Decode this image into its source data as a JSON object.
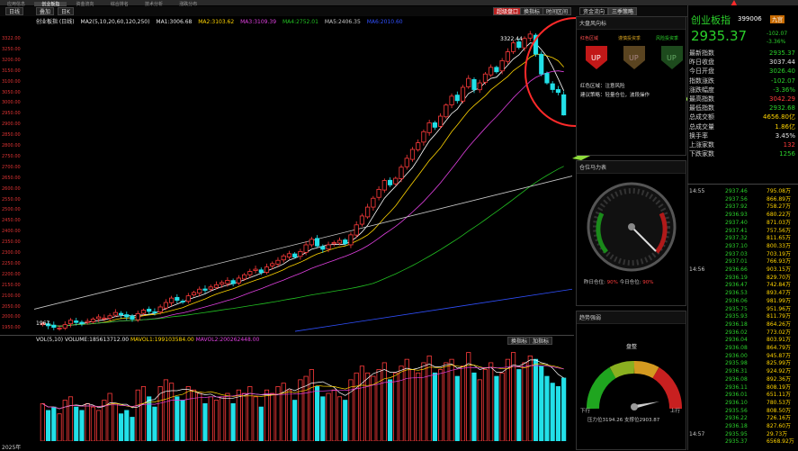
{
  "nav": {
    "tabs": [
      "应用信息",
      "创业板指",
      "资金流向",
      "综合排名",
      "技术分析",
      "涨跌分布"
    ]
  },
  "toolbar": {
    "period": "日线",
    "add_label": "叠加",
    "period2": "日K",
    "btn_restore": "复权",
    "btn_settings": "设置",
    "btn_pick": "选股",
    "btn_monitor": "监控",
    "right_a": "超级盘口",
    "right_b": "换指标",
    "right_c": "时间区间",
    "fund_flow": "资金流向",
    "season": "三季策略"
  },
  "stock": {
    "name": "创业板指",
    "code": "399006",
    "price": "2935.37",
    "change": "-102.07",
    "pct": "-3.36%",
    "tag": "九宫"
  },
  "ma": {
    "title": "创业板指 (日线)",
    "params": "MA2(5,10,20,60,120,250)",
    "ma1": "MA1:3006.68",
    "ma2": "MA2:3103.62",
    "ma3": "MA3:3109.39",
    "ma4": "MA4:2752.01",
    "ma5": "MA5:2406.35",
    "ma6": "MA6:2010.60"
  },
  "vol": {
    "label": "VOL(5,10)",
    "volume": "VOLUME:185613712.00",
    "mavol1": "MAVOL1:199103584.00",
    "mavol2": "MAVOL2:200262448.00",
    "switch": "换指标",
    "add": "加指标"
  },
  "annot": {
    "high": "3322.44",
    "low": "1967"
  },
  "yaxis": [
    "3322.00",
    "3250.00",
    "3200.00",
    "3150.00",
    "3100.00",
    "3050.00",
    "3000.00",
    "2950.00",
    "2900.00",
    "2850.00",
    "2800.00",
    "2750.00",
    "2700.00",
    "2650.00",
    "2600.00",
    "2550.00",
    "2500.00",
    "2450.00",
    "2400.00",
    "2350.00",
    "2300.00",
    "2250.00",
    "2200.00",
    "2150.00",
    "2100.00",
    "2050.00",
    "2000.00",
    "1950.00"
  ],
  "bottom": {
    "year": "2025年"
  },
  "compass": {
    "title": "大盘风向标",
    "labels": [
      "红色区域",
      "谨慎投资季",
      "风险投资季"
    ],
    "line1": "红色区域：注意风险",
    "line2": "建议策略：轻量仓位，波段操作"
  },
  "position": {
    "title": "仓位马力表",
    "yesterday_label": "昨日仓位:",
    "yesterday": "90%",
    "today_label": "今日仓位:",
    "today": "90%"
  },
  "trend": {
    "title": "趋势强弱",
    "state": "盘整",
    "down": "下行",
    "up": "上行",
    "pressure": "压力位3194.26",
    "support": "支撑位2903.87"
  },
  "quote": [
    {
      "k": "最新指数",
      "v": "2935.37",
      "c": "green"
    },
    {
      "k": "昨日收盘",
      "v": "3037.44",
      "c": "white"
    },
    {
      "k": "今日开盘",
      "v": "3026.40",
      "c": "green"
    },
    {
      "k": "指数涨跌",
      "v": "-102.07",
      "c": "green"
    },
    {
      "k": "涨跌幅度",
      "v": "-3.36%",
      "c": "green"
    },
    {
      "k": "最高指数",
      "v": "3042.29",
      "c": "red"
    },
    {
      "k": "最低指数",
      "v": "2932.68",
      "c": "green"
    },
    {
      "k": "总成交额",
      "v": "4656.80亿",
      "c": "yellow"
    },
    {
      "k": "总成交量",
      "v": "1.86亿",
      "c": "yellow"
    },
    {
      "k": "换手率",
      "v": "3.45%",
      "c": "white"
    },
    {
      "k": "上涨家数",
      "v": "132",
      "c": "red"
    },
    {
      "k": "下跌家数",
      "v": "1256",
      "c": "green"
    }
  ],
  "ticks": [
    {
      "t": "14:55",
      "p": "2937.46",
      "v": "795.08万"
    },
    {
      "t": "",
      "p": "2937.56",
      "v": "866.89万"
    },
    {
      "t": "",
      "p": "2937.92",
      "v": "758.27万"
    },
    {
      "t": "",
      "p": "2936.93",
      "v": "680.22万"
    },
    {
      "t": "",
      "p": "2937.40",
      "v": "871.03万"
    },
    {
      "t": "",
      "p": "2937.41",
      "v": "757.56万"
    },
    {
      "t": "",
      "p": "2937.32",
      "v": "811.65万"
    },
    {
      "t": "",
      "p": "2937.10",
      "v": "800.33万"
    },
    {
      "t": "",
      "p": "2937.03",
      "v": "703.19万"
    },
    {
      "t": "",
      "p": "2937.01",
      "v": "766.93万"
    },
    {
      "t": "14:56",
      "p": "2936.66",
      "v": "903.15万"
    },
    {
      "t": "",
      "p": "2936.19",
      "v": "829.70万"
    },
    {
      "t": "",
      "p": "2936.47",
      "v": "742.84万"
    },
    {
      "t": "",
      "p": "2936.53",
      "v": "893.47万"
    },
    {
      "t": "",
      "p": "2936.06",
      "v": "981.99万"
    },
    {
      "t": "",
      "p": "2935.75",
      "v": "951.96万"
    },
    {
      "t": "",
      "p": "2935.93",
      "v": "811.79万"
    },
    {
      "t": "",
      "p": "2936.18",
      "v": "864.26万"
    },
    {
      "t": "",
      "p": "2936.02",
      "v": "773.02万"
    },
    {
      "t": "",
      "p": "2936.04",
      "v": "803.91万"
    },
    {
      "t": "",
      "p": "2936.08",
      "v": "864.79万"
    },
    {
      "t": "",
      "p": "2936.00",
      "v": "945.87万"
    },
    {
      "t": "",
      "p": "2935.98",
      "v": "825.99万"
    },
    {
      "t": "",
      "p": "2936.31",
      "v": "924.92万"
    },
    {
      "t": "",
      "p": "2936.08",
      "v": "892.36万"
    },
    {
      "t": "",
      "p": "2936.11",
      "v": "808.19万"
    },
    {
      "t": "",
      "p": "2936.01",
      "v": "651.11万"
    },
    {
      "t": "",
      "p": "2936.10",
      "v": "780.53万"
    },
    {
      "t": "",
      "p": "2935.56",
      "v": "808.50万"
    },
    {
      "t": "",
      "p": "2936.22",
      "v": "726.16万"
    },
    {
      "t": "",
      "p": "2936.18",
      "v": "827.60万"
    },
    {
      "t": "14:57",
      "p": "2935.95",
      "v": "29.73万"
    },
    {
      "t": "",
      "p": "2935.37",
      "v": "6568.92万"
    }
  ],
  "colors": {
    "up": "#ff3b3b",
    "down": "#22e0e8",
    "ma5": "#ffffff",
    "ma10": "#ffd400",
    "ma20": "#e040e0",
    "ma60": "#22c022",
    "ma120": "#c8c8c8",
    "ma250": "#3050ff",
    "annot_circle": "#ff2a2a",
    "arrow": "#8fdc3c"
  },
  "chart_data": {
    "type": "candlestick",
    "close": [
      1995,
      1985,
      1978,
      1975,
      1990,
      2010,
      2000,
      1995,
      2005,
      2015,
      2025,
      2020,
      2030,
      2045,
      2035,
      2025,
      2015,
      2040,
      2055,
      2050,
      2045,
      2070,
      2090,
      2110,
      2100,
      2095,
      2120,
      2135,
      2150,
      2145,
      2160,
      2170,
      2180,
      2190,
      2175,
      2200,
      2215,
      2230,
      2240,
      2225,
      2250,
      2265,
      2280,
      2300,
      2310,
      2295,
      2320,
      2350,
      2375,
      2345,
      2330,
      2350,
      2360,
      2370,
      2355,
      2395,
      2440,
      2480,
      2520,
      2560,
      2600,
      2640,
      2620,
      2650,
      2700,
      2740,
      2780,
      2810,
      2860,
      2900,
      2880,
      2930,
      2980,
      3020,
      3000,
      3060,
      3100,
      3050,
      3080,
      3120,
      3150,
      3130,
      3180,
      3220,
      3260,
      3240,
      3280,
      3300,
      3210,
      3120,
      3080,
      3050,
      3037,
      2935
    ],
    "volumes": [
      1.1,
      0.9,
      1.0,
      0.8,
      1.2,
      1.3,
      1.0,
      0.9,
      1.1,
      1.0,
      0.9,
      1.2,
      1.4,
      1.1,
      0.8,
      0.9,
      0.7,
      1.5,
      1.6,
      1.3,
      1.0,
      1.6,
      1.8,
      1.7,
      1.3,
      1.2,
      1.6,
      1.5,
      1.4,
      1.1,
      1.3,
      1.2,
      1.3,
      1.4,
      1.1,
      1.5,
      1.4,
      1.6,
      1.3,
      1.0,
      1.5,
      1.4,
      1.6,
      1.7,
      1.5,
      1.2,
      1.8,
      1.9,
      2.1,
      1.6,
      1.3,
      1.4,
      1.5,
      1.3,
      1.2,
      1.8,
      2.0,
      2.2,
      2.0,
      1.9,
      2.1,
      2.3,
      1.8,
      2.0,
      2.2,
      2.4,
      2.1,
      2.0,
      2.3,
      2.5,
      2.0,
      2.1,
      2.3,
      2.4,
      1.9,
      2.2,
      2.6,
      2.0,
      1.8,
      2.1,
      2.3,
      1.9,
      2.0,
      2.4,
      2.6,
      2.1,
      2.3,
      2.5,
      2.4,
      2.2,
      1.9,
      1.7,
      1.6,
      1.85
    ]
  }
}
